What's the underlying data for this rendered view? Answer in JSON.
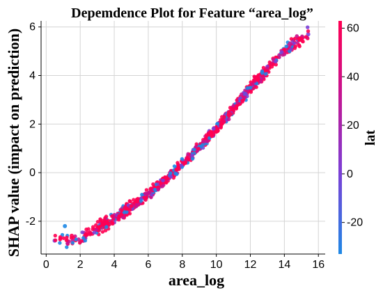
{
  "chart_data": {
    "type": "scatter",
    "title": "Depemdence Plot for Feature “area_log”",
    "xlabel": "area_log",
    "ylabel": "SHAP value (impact on prediction)",
    "xlim": [
      -0.3,
      16.4
    ],
    "ylim": [
      -3.35,
      6.25
    ],
    "xticks": [
      0,
      2,
      4,
      6,
      8,
      10,
      12,
      14,
      16
    ],
    "yticks": [
      -2,
      0,
      2,
      4,
      6
    ],
    "grid": true,
    "trend": {
      "description": "SHAP value rises monotonically and convexly with area_log",
      "x": [
        0.5,
        2.0,
        4.0,
        6.0,
        8.0,
        10.0,
        12.0,
        14.0,
        15.4
      ],
      "y": [
        -2.8,
        -2.7,
        -1.9,
        -0.9,
        0.35,
        1.8,
        3.5,
        5.0,
        5.7
      ]
    },
    "series": [
      {
        "x": [
          0.5,
          1.1,
          1.5,
          1.9,
          2.3,
          2.6,
          3.0,
          3.4,
          3.8,
          4.2,
          4.6,
          5.0,
          5.4,
          5.8,
          6.2,
          6.6,
          7.0,
          7.4,
          7.8,
          8.2,
          8.6,
          9.0,
          9.4,
          9.8,
          10.2,
          10.6,
          11.0,
          11.4,
          11.8,
          12.2,
          12.6,
          13.0,
          13.4,
          13.8,
          14.4,
          15.0,
          15.4
        ],
        "y": [
          -2.8,
          -2.2,
          -2.6,
          -2.75,
          -2.7,
          -2.5,
          -2.3,
          -2.2,
          -2.0,
          -1.85,
          -1.65,
          -1.5,
          -1.25,
          -1.05,
          -0.85,
          -0.6,
          -0.35,
          -0.1,
          0.15,
          0.45,
          0.75,
          1.05,
          1.3,
          1.6,
          1.9,
          2.2,
          2.55,
          2.85,
          3.15,
          3.5,
          3.85,
          4.2,
          4.55,
          4.9,
          5.2,
          5.55,
          5.7
        ],
        "color_by": "lat"
      }
    ],
    "colorbar": {
      "label": "lat",
      "ticks": [
        -20,
        0,
        20,
        40,
        60
      ],
      "range": [
        -33,
        63
      ],
      "colors": [
        "#1e88e5",
        "#7b3fd6",
        "#c8128e",
        "#ff0052"
      ]
    }
  }
}
